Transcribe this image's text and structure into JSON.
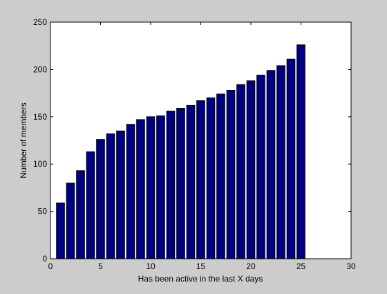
{
  "chart_data": {
    "type": "bar",
    "title": "",
    "xlabel": "Has been active in the last X days",
    "ylabel": "Number of members",
    "xlim": [
      0,
      30
    ],
    "ylim": [
      0,
      250
    ],
    "xticks": [
      0,
      5,
      10,
      15,
      20,
      25,
      30
    ],
    "yticks": [
      0,
      50,
      100,
      150,
      200,
      250
    ],
    "grid": false,
    "legend": "none",
    "bar_color": "#000080",
    "x": [
      1,
      2,
      3,
      4,
      5,
      6,
      7,
      8,
      9,
      10,
      11,
      12,
      13,
      14,
      15,
      16,
      17,
      18,
      19,
      20,
      21,
      22,
      23,
      24,
      25
    ],
    "values": [
      59,
      80,
      93,
      113,
      126,
      132,
      135,
      142,
      147,
      150,
      151,
      156,
      159,
      162,
      167,
      170,
      174,
      178,
      184,
      188,
      194,
      199,
      204,
      211,
      226
    ]
  }
}
